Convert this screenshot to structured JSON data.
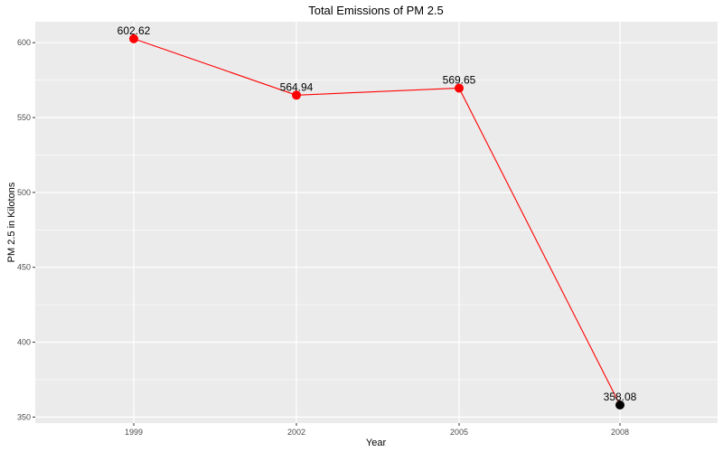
{
  "chart_data": {
    "type": "line",
    "title": "Total Emissions of PM 2.5",
    "xlabel": "Year",
    "ylabel": "PM 2.5 in Kilotons",
    "categories": [
      "1999",
      "2002",
      "2005",
      "2008"
    ],
    "series": [
      {
        "values": [
          602.62,
          564.94,
          569.65,
          358.08
        ],
        "labels": [
          "602.62",
          "564.94",
          "569.65",
          "358.08"
        ],
        "line_color": "#ff0000",
        "point_colors": [
          "#ff0000",
          "#ff0000",
          "#ff0000",
          "#000000"
        ]
      }
    ],
    "ylim": [
      346,
      614
    ],
    "yticks": [
      350,
      400,
      450,
      500,
      550,
      600
    ],
    "ytick_labels": [
      "350",
      "400",
      "450",
      "500",
      "550",
      "600"
    ],
    "grid": true,
    "panel_color": "#ebebeb",
    "grid_color": "#ffffff"
  }
}
